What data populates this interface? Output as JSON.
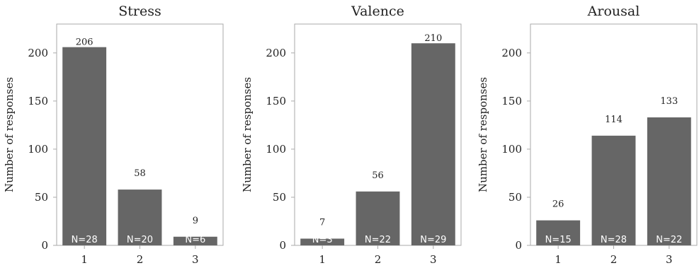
{
  "colors": {
    "bar": "#666666",
    "axis": "#aaaaaa",
    "text": "#222222",
    "n_label": "#ffffff"
  },
  "chart_data": [
    {
      "type": "bar",
      "title": "Stress",
      "ylabel": "Number of responses",
      "xlabel": "",
      "categories": [
        "1",
        "2",
        "3"
      ],
      "values": [
        206,
        58,
        9
      ],
      "value_labels": [
        "206",
        "58",
        "9"
      ],
      "n_labels": [
        "N=28",
        "N=20",
        "N=6"
      ],
      "ylim": [
        0,
        230
      ],
      "yticks": [
        0,
        50,
        100,
        150,
        200
      ],
      "grid": false
    },
    {
      "type": "bar",
      "title": "Valence",
      "ylabel": "Number of responses",
      "xlabel": "",
      "categories": [
        "1",
        "2",
        "3"
      ],
      "values": [
        7,
        56,
        210
      ],
      "value_labels": [
        "7",
        "56",
        "210"
      ],
      "n_labels": [
        "N=3",
        "N=22",
        "N=29"
      ],
      "ylim": [
        0,
        230
      ],
      "yticks": [
        0,
        50,
        100,
        150,
        200
      ],
      "grid": false
    },
    {
      "type": "bar",
      "title": "Arousal",
      "ylabel": "Number of responses",
      "xlabel": "",
      "categories": [
        "1",
        "2",
        "3"
      ],
      "values": [
        26,
        114,
        133
      ],
      "value_labels": [
        "26",
        "114",
        "133"
      ],
      "n_labels": [
        "N=15",
        "N=28",
        "N=22"
      ],
      "ylim": [
        0,
        230
      ],
      "yticks": [
        0,
        50,
        100,
        150,
        200
      ],
      "grid": false
    }
  ]
}
